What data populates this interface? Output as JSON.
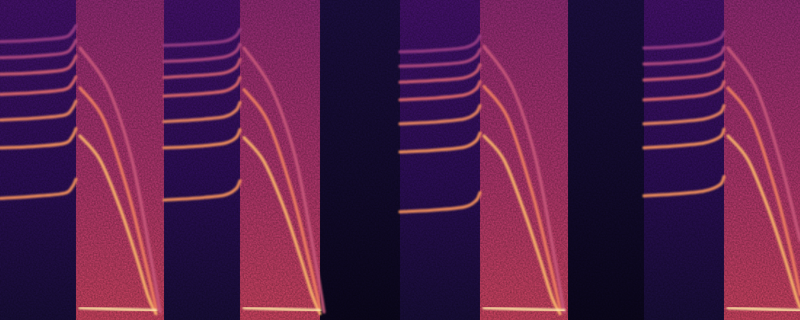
{
  "chart_data": {
    "type": "spectrogram",
    "tick_labels": false,
    "xlim": [
      0,
      100
    ],
    "ylim": [
      0,
      100
    ],
    "regions": [
      {
        "start": 0,
        "end": 9.5,
        "level": 0.3
      },
      {
        "start": 9.5,
        "end": 20.5,
        "level": 0.55
      },
      {
        "start": 20.5,
        "end": 30,
        "level": 0.3
      },
      {
        "start": 30,
        "end": 40,
        "level": 0.55
      },
      {
        "start": 40,
        "end": 50,
        "level": 0.14
      },
      {
        "start": 50,
        "end": 60,
        "level": 0.3
      },
      {
        "start": 60,
        "end": 71,
        "level": 0.55
      },
      {
        "start": 71,
        "end": 80.5,
        "level": 0.14
      },
      {
        "start": 80.5,
        "end": 90.5,
        "level": 0.3
      },
      {
        "start": 90.5,
        "end": 100,
        "level": 0.55
      }
    ],
    "series": [
      {
        "color": "#f8945c",
        "x": [
          0,
          4,
          8,
          9,
          9.5
        ],
        "values": [
          38,
          38.6,
          39.6,
          41.5,
          44
        ]
      },
      {
        "color": "#f8945c",
        "x": [
          0,
          4,
          8,
          9,
          9.5
        ],
        "values": [
          53.8,
          54.2,
          55.2,
          57.2,
          59.8
        ]
      },
      {
        "color": "#f08a60",
        "x": [
          0,
          4,
          8,
          9,
          9.5
        ],
        "values": [
          62.5,
          63,
          64,
          66,
          68.4
        ]
      },
      {
        "color": "#e06a6c",
        "x": [
          0,
          4,
          8,
          9,
          9.5
        ],
        "values": [
          70.5,
          71,
          72,
          73.8,
          76
        ]
      },
      {
        "color": "#d05e72",
        "x": [
          0,
          4,
          8,
          9,
          9.5
        ],
        "values": [
          76.8,
          77.2,
          78.2,
          80,
          82.4
        ]
      },
      {
        "color": "#b24a80",
        "x": [
          0,
          4,
          8,
          9,
          9.5
        ],
        "values": [
          82,
          82.4,
          83.4,
          85.2,
          87.4
        ]
      },
      {
        "color": "#9a3e84",
        "x": [
          0,
          4,
          8,
          9,
          9.5
        ],
        "values": [
          87,
          87.4,
          88.3,
          90,
          92
        ]
      },
      {
        "color": "#fbb56a",
        "x": [
          10,
          12.5,
          15,
          17,
          18.5,
          19.5
        ],
        "values": [
          57.5,
          50,
          35,
          20,
          7.5,
          2
        ]
      },
      {
        "color": "#f08060",
        "x": [
          10,
          13,
          16,
          18,
          19.5
        ],
        "values": [
          72.5,
          62.5,
          40,
          20,
          3.8
        ]
      },
      {
        "color": "#c8567a",
        "x": [
          10,
          13.5,
          16.5,
          19,
          20
        ],
        "values": [
          85,
          72.5,
          50,
          17.5,
          2.5
        ]
      },
      {
        "color": "#fde2a4",
        "x": [
          10,
          19.5
        ],
        "values": [
          3.8,
          3
        ]
      },
      {
        "color": "#f8945c",
        "x": [
          20.5,
          24,
          28,
          29.5,
          30
        ],
        "values": [
          37.5,
          38,
          39,
          41,
          43.5
        ]
      },
      {
        "color": "#f8945c",
        "x": [
          20.5,
          24,
          28,
          29.5,
          30
        ],
        "values": [
          53.8,
          54.2,
          55.2,
          57,
          59.5
        ]
      },
      {
        "color": "#f08a60",
        "x": [
          20.5,
          24,
          28,
          29.5,
          30
        ],
        "values": [
          62,
          62.5,
          63.5,
          65.5,
          68
        ]
      },
      {
        "color": "#e06a6c",
        "x": [
          20.5,
          24,
          28,
          29.5,
          30
        ],
        "values": [
          70,
          70.5,
          71.5,
          73.4,
          75.8
        ]
      },
      {
        "color": "#d05e72",
        "x": [
          20.5,
          24,
          28,
          29.5,
          30
        ],
        "values": [
          75.8,
          76.3,
          77.2,
          79,
          81.4
        ]
      },
      {
        "color": "#b24a80",
        "x": [
          20.5,
          24,
          28,
          29.5,
          30
        ],
        "values": [
          80.8,
          81.2,
          82.2,
          84,
          86.2
        ]
      },
      {
        "color": "#9a3e84",
        "x": [
          20.5,
          24,
          28,
          29.5,
          30
        ],
        "values": [
          85.8,
          86.2,
          87.1,
          88.8,
          90.8
        ]
      },
      {
        "color": "#fbb56a",
        "x": [
          30.5,
          33,
          35.5,
          37.5,
          39,
          40
        ],
        "values": [
          57,
          49.5,
          35,
          20,
          8,
          2
        ]
      },
      {
        "color": "#f08060",
        "x": [
          30.5,
          33.5,
          36.5,
          38.5,
          40
        ],
        "values": [
          72,
          62,
          40,
          20,
          3.8
        ]
      },
      {
        "color": "#c8567a",
        "x": [
          30.5,
          34,
          37,
          39.5,
          40.5
        ],
        "values": [
          85,
          72,
          50,
          17.5,
          2.5
        ]
      },
      {
        "color": "#fde2a4",
        "x": [
          30.5,
          40
        ],
        "values": [
          3.8,
          3
        ]
      },
      {
        "color": "#f8945c",
        "x": [
          50,
          54,
          58,
          59.5,
          60
        ],
        "values": [
          33.8,
          34.3,
          35.3,
          37.3,
          39.8
        ]
      },
      {
        "color": "#f8945c",
        "x": [
          50,
          54,
          58,
          59.5,
          60
        ],
        "values": [
          52.5,
          53,
          54,
          56,
          58.4
        ]
      },
      {
        "color": "#f08a60",
        "x": [
          50,
          54,
          58,
          59.5,
          60
        ],
        "values": [
          61.3,
          61.8,
          62.8,
          64.7,
          67
        ]
      },
      {
        "color": "#e06a6c",
        "x": [
          50,
          54,
          58,
          59.5,
          60
        ],
        "values": [
          68.8,
          69.3,
          70.3,
          72.2,
          74.5
        ]
      },
      {
        "color": "#d05e72",
        "x": [
          50,
          54,
          58,
          59.5,
          60
        ],
        "values": [
          74.3,
          74.8,
          75.7,
          77.5,
          79.8
        ]
      },
      {
        "color": "#b24a80",
        "x": [
          50,
          54,
          58,
          59.5,
          60
        ],
        "values": [
          79.3,
          79.7,
          80.6,
          82.4,
          84.5
        ]
      },
      {
        "color": "#9a3e84",
        "x": [
          50,
          54,
          58,
          59.5,
          60
        ],
        "values": [
          83.8,
          84.2,
          85.1,
          86.8,
          88.8
        ]
      },
      {
        "color": "#fbb56a",
        "x": [
          60.5,
          63,
          65.5,
          67.5,
          69,
          70
        ],
        "values": [
          57.5,
          50,
          34,
          19,
          7,
          2
        ]
      },
      {
        "color": "#f08060",
        "x": [
          60.5,
          63.5,
          66.5,
          68.5,
          70
        ],
        "values": [
          73,
          63,
          40,
          20,
          3.8
        ]
      },
      {
        "color": "#c8567a",
        "x": [
          60.5,
          64,
          67,
          69.5,
          70.5
        ],
        "values": [
          85.5,
          73,
          50,
          17,
          2.5
        ]
      },
      {
        "color": "#fde2a4",
        "x": [
          60.5,
          70.5
        ],
        "values": [
          3.8,
          3
        ]
      },
      {
        "color": "#f8945c",
        "x": [
          80.5,
          84,
          88,
          90,
          90.5
        ],
        "values": [
          38.8,
          39.3,
          40.3,
          42.3,
          44.8
        ]
      },
      {
        "color": "#f8945c",
        "x": [
          80.5,
          84,
          88,
          90,
          90.5
        ],
        "values": [
          53.8,
          54.3,
          55.3,
          57.2,
          59.6
        ]
      },
      {
        "color": "#f08a60",
        "x": [
          80.5,
          84,
          88,
          90,
          90.5
        ],
        "values": [
          61.3,
          61.8,
          62.8,
          64.7,
          67
        ]
      },
      {
        "color": "#e06a6c",
        "x": [
          80.5,
          84,
          88,
          90,
          90.5
        ],
        "values": [
          68.8,
          69.3,
          70.3,
          72.2,
          74.5
        ]
      },
      {
        "color": "#d05e72",
        "x": [
          80.5,
          84,
          88,
          90,
          90.5
        ],
        "values": [
          75,
          75.5,
          76.4,
          78.2,
          80.5
        ]
      },
      {
        "color": "#b24a80",
        "x": [
          80.5,
          84,
          88,
          90,
          90.5
        ],
        "values": [
          80,
          80.4,
          81.3,
          83.1,
          85.2
        ]
      },
      {
        "color": "#9a3e84",
        "x": [
          80.5,
          84,
          88,
          90,
          90.5
        ],
        "values": [
          85,
          85.4,
          86.3,
          88,
          90
        ]
      },
      {
        "color": "#fbb56a",
        "x": [
          91,
          93.5,
          96,
          98,
          99.5,
          100
        ],
        "values": [
          57.5,
          50,
          35,
          20,
          7.5,
          4
        ]
      },
      {
        "color": "#f08060",
        "x": [
          91,
          94,
          97,
          99,
          100
        ],
        "values": [
          72.5,
          62.5,
          40,
          20,
          8
        ]
      },
      {
        "color": "#c8567a",
        "x": [
          91,
          94.5,
          97.5,
          100
        ],
        "values": [
          85,
          72.5,
          50,
          25
        ]
      },
      {
        "color": "#fde2a4",
        "x": [
          91,
          100
        ],
        "values": [
          3.8,
          3
        ]
      }
    ]
  }
}
